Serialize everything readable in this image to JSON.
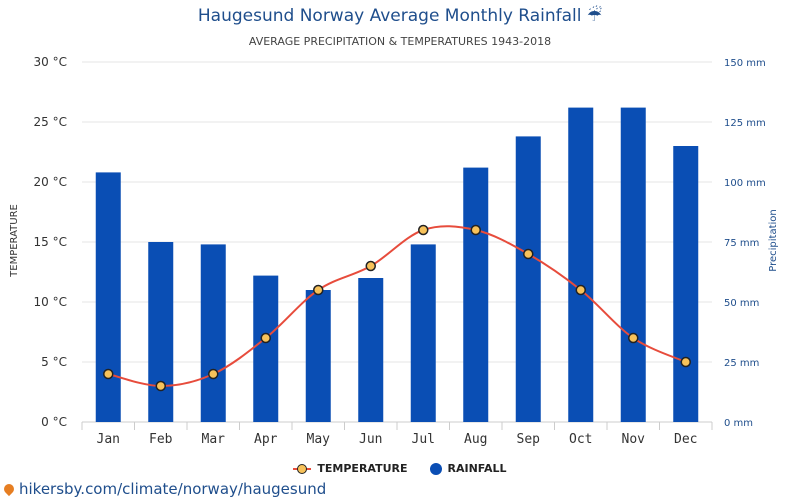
{
  "header": {
    "title": "Haugesund Norway Average Monthly Rainfall ☔",
    "subtitle": "AVERAGE PRECIPITATION & TEMPERATURES 1943-2018"
  },
  "footer": {
    "link_text": "hikersby.com/climate/norway/haugesund"
  },
  "colors": {
    "bar": "#0a4eb4",
    "line": "#e74c3c",
    "marker": "#f7c25a",
    "right_axis_text": "#1f4e8c"
  },
  "chart_data": {
    "type": "bar",
    "categories": [
      "Jan",
      "Feb",
      "Mar",
      "Apr",
      "May",
      "Jun",
      "Jul",
      "Aug",
      "Sep",
      "Oct",
      "Nov",
      "Dec"
    ],
    "series": [
      {
        "name": "RAINFALL",
        "type": "bar",
        "axis": "right",
        "unit": "mm",
        "values": [
          104,
          75,
          74,
          61,
          55,
          60,
          74,
          106,
          119,
          131,
          131,
          115
        ]
      },
      {
        "name": "TEMPERATURE",
        "type": "line",
        "axis": "left",
        "unit": "°C",
        "values": [
          4,
          3,
          4,
          7,
          11,
          13,
          16,
          16,
          14,
          11,
          7,
          5
        ]
      }
    ],
    "left_axis": {
      "label": "TEMPERATURE",
      "ylim": [
        0,
        30
      ],
      "ticks": [
        "0 °C",
        "5 °C",
        "10 °C",
        "15 °C",
        "20 °C",
        "25 °C",
        "30 °C"
      ]
    },
    "right_axis": {
      "label": "Precipitation",
      "ylim": [
        0,
        150
      ],
      "ticks": [
        "0 mm",
        "25 mm",
        "50 mm",
        "75 mm",
        "100 mm",
        "125 mm",
        "150 mm"
      ]
    },
    "legend": [
      "TEMPERATURE",
      "RAINFALL"
    ],
    "legend_position": "bottom",
    "grid": true
  }
}
